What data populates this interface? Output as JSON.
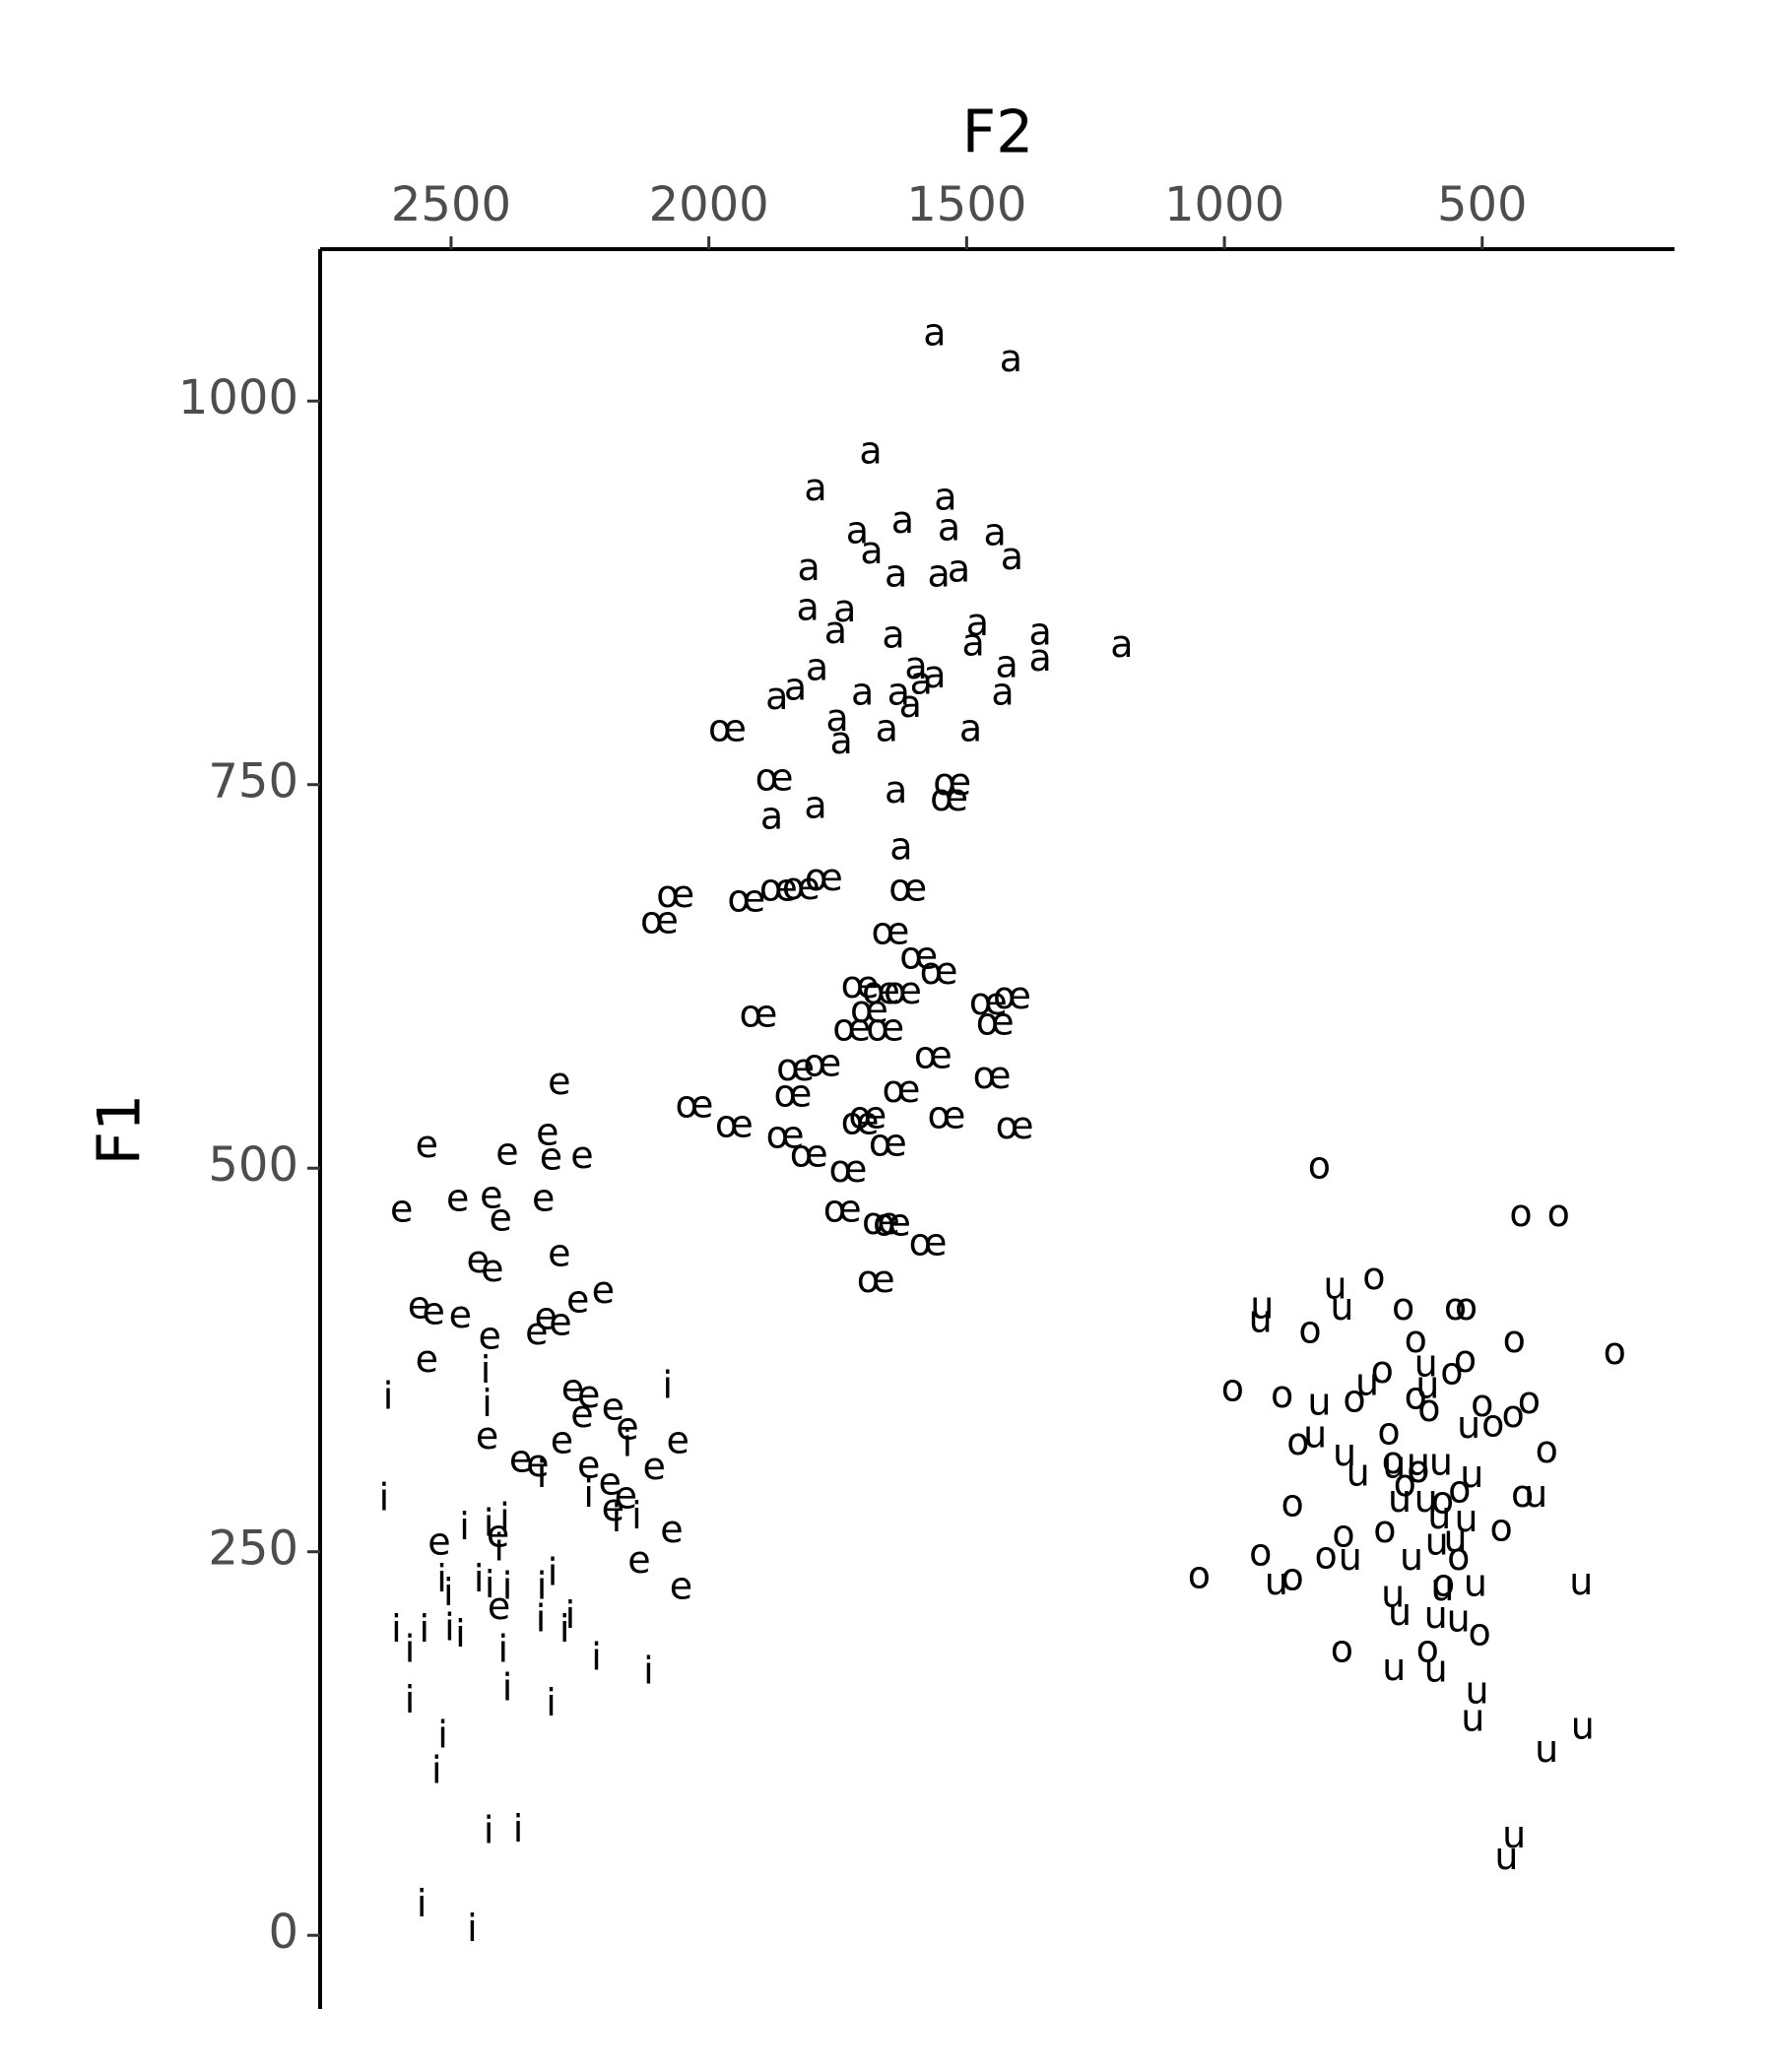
{
  "chart_data": {
    "type": "scatter",
    "x_label": "F2",
    "y_label": "F1",
    "x_axis_position": "top",
    "xlim": [
      2754,
      127
    ],
    "ylim": [
      -48,
      1099
    ],
    "xticks": [
      2500,
      2000,
      1500,
      1000,
      500
    ],
    "yticks": [
      0,
      250,
      500,
      750,
      1000
    ],
    "series": [
      {
        "name": "a",
        "color": "#000000",
        "x": [
          1562,
          1414,
          1686,
          1793,
          1541,
          1624,
          1712,
          1534,
          1684,
          1445,
          1412,
          1806,
          1637,
          1554,
          1515,
          1808,
          1736,
          1754,
          1642,
          1479,
          1357,
          1199,
          1487,
          1790,
          1422,
          1357,
          1598,
          1562,
          1868,
          1832,
          1702,
          1632,
          1588,
          1430,
          1751,
          1655,
          1609,
          1492,
          1743,
          1793,
          1878,
          1637,
          1627
        ],
        "values": [
          1043,
          1026,
          966,
          942,
          936,
          921,
          914,
          916,
          901,
          913,
          897,
          890,
          886,
          886,
          889,
          864,
          863,
          849,
          846,
          854,
          848,
          840,
          841,
          825,
          827,
          831,
          826,
          820,
          806,
          812,
          809,
          809,
          816,
          809,
          792,
          785,
          801,
          785,
          777,
          735,
          728,
          745,
          708
        ]
      },
      {
        "name": "œ",
        "color": "#000000",
        "x": [
          1964,
          1873,
          1528,
          1534,
          2096,
          2065,
          1927,
          1865,
          1821,
          1777,
          1614,
          1648,
          1593,
          1554,
          1707,
          1666,
          1624,
          1689,
          1723,
          1658,
          1458,
          1412,
          1445,
          1904,
          1832,
          1780,
          1837,
          2028,
          1951,
          1852,
          1806,
          1730,
          1707,
          1692,
          1627,
          1565,
          1539,
          1451,
          1407,
          1653,
          1741,
          1666,
          1645,
          1575,
          1676
        ],
        "values": [
          785,
          753,
          750,
          740,
          660,
          677,
          674,
          681,
          682,
          688,
          681,
          653,
          637,
          627,
          618,
          614,
          614,
          602,
          590,
          590,
          607,
          611,
          594,
          599,
          564,
          567,
          547,
          540,
          527,
          520,
          508,
          498,
          529,
          533,
          550,
          572,
          533,
          559,
          526,
          515,
          472,
          464,
          463,
          450,
          426
        ]
      },
      {
        "name": "e",
        "color": "#000000",
        "x": [
          2290,
          2547,
          2391,
          2313,
          2306,
          2246,
          2596,
          2487,
          2422,
          2404,
          2321,
          2448,
          2420,
          2290,
          2562,
          2534,
          2482,
          2425,
          2334,
          2316,
          2288,
          2254,
          2205,
          2547,
          2264,
          2233,
          2186,
          2246,
          2158,
          2430,
          2285,
          2365,
          2332,
          2060,
          2233,
          2192,
          2106,
          2161,
          2186,
          2409,
          2523,
          2135,
          2072,
          2054,
          2407
        ],
        "values": [
          555,
          514,
          509,
          522,
          506,
          507,
          472,
          479,
          481,
          466,
          479,
          439,
          433,
          443,
          409,
          405,
          403,
          389,
          392,
          402,
          398,
          413,
          419,
          374,
          355,
          351,
          343,
          338,
          330,
          324,
          321,
          309,
          306,
          321,
          305,
          294,
          304,
          285,
          277,
          260,
          255,
          243,
          263,
          226,
          213
        ]
      },
      {
        "name": "i",
        "color": "#000000",
        "x": [
          2622,
          2433,
          2430,
          2080,
          2324,
          2630,
          2233,
          2158,
          2179,
          2140,
          2474,
          2427,
          2396,
          2407,
          2518,
          2446,
          2505,
          2425,
          2391,
          2324,
          2303,
          2606,
          2580,
          2552,
          2503,
          2482,
          2399,
          2326,
          2269,
          2280,
          2218,
          2117,
          2391,
          2580,
          2306,
          2516,
          2528,
          2427,
          2370,
          2557,
          2459
        ],
        "values": [
          350,
          367,
          345,
          357,
          299,
          284,
          286,
          319,
          270,
          272,
          265,
          267,
          271,
          251,
          231,
          231,
          222,
          227,
          226,
          226,
          235,
          198,
          185,
          198,
          199,
          195,
          185,
          205,
          207,
          198,
          180,
          171,
          160,
          152,
          150,
          129,
          106,
          67,
          68,
          19,
          3
        ]
      },
      {
        "name": "o",
        "color": "#000000",
        "x": [
          816,
          425,
          352,
          710,
          653,
          552,
          531,
          834,
          629,
          438,
          243,
          984,
          888,
          748,
          694,
          629,
          603,
          533,
          559,
          500,
          409,
          440,
          479,
          857,
          681,
          375,
          673,
          624,
          650,
          544,
          422,
          868,
          769,
          689,
          463,
          930,
          803,
          546,
          1049,
          868,
          575,
          505,
          772,
          606,
          577
        ],
        "values": [
          500,
          469,
          469,
          428,
          408,
          408,
          408,
          393,
          387,
          387,
          379,
          355,
          351,
          348,
          367,
          350,
          342,
          374,
          366,
          345,
          347,
          338,
          332,
          320,
          327,
          315,
          308,
          302,
          293,
          289,
          286,
          280,
          260,
          263,
          264,
          248,
          246,
          245,
          233,
          232,
          228,
          196,
          185,
          185,
          282
        ]
      },
      {
        "name": "u",
        "color": "#000000",
        "x": [
          927,
          785,
          930,
          772,
          723,
          816,
          609,
          606,
          824,
          767,
          741,
          671,
          624,
          580,
          520,
          526,
          660,
          609,
          583,
          531,
          552,
          396,
          756,
          637,
          588,
          899,
          673,
          577,
          513,
          308,
          660,
          590,
          546,
          671,
          590,
          510,
          518,
          305,
          375,
          438,
          453
        ],
        "values": [
          409,
          422,
          400,
          408,
          359,
          346,
          371,
          357,
          325,
          313,
          300,
          305,
          307,
          307,
          299,
          331,
          283,
          283,
          272,
          270,
          257,
          286,
          245,
          245,
          255,
          229,
          221,
          225,
          228,
          229,
          209,
          207,
          205,
          173,
          172,
          158,
          140,
          135,
          120,
          64,
          50
        ]
      }
    ]
  }
}
